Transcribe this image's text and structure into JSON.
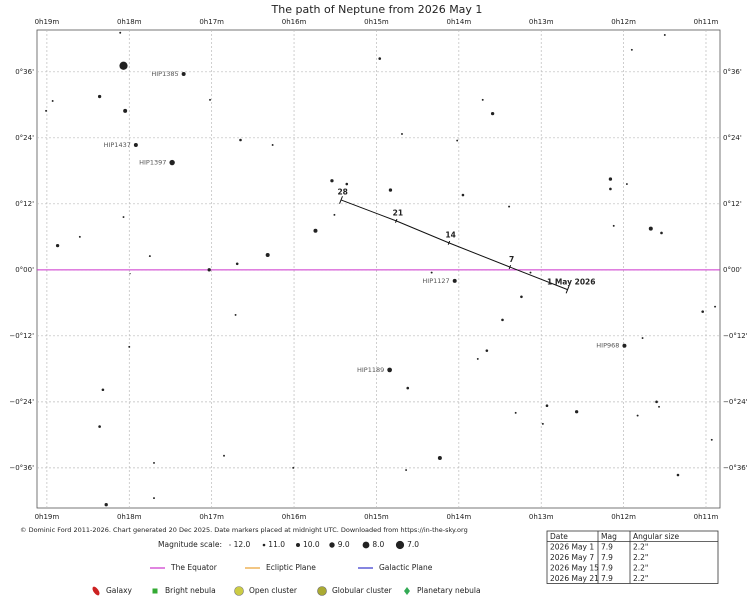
{
  "chart_data": {
    "type": "starchart",
    "title": "The path of Neptune from 2026 May 1",
    "credit": "© Dominic Ford 2011-2026. Chart generated 20 Dec 2025. Date markers placed at midnight UTC. Downloaded from https://in-the-sky.org",
    "xlim": [
      19.12,
      10.83
    ],
    "ylim": [
      -43.3,
      43.6
    ],
    "xticks": [
      {
        "value": 19,
        "label": "0h19m"
      },
      {
        "value": 18,
        "label": "0h18m"
      },
      {
        "value": 17,
        "label": "0h17m"
      },
      {
        "value": 16,
        "label": "0h16m"
      },
      {
        "value": 15,
        "label": "0h15m"
      },
      {
        "value": 14,
        "label": "0h14m"
      },
      {
        "value": 13,
        "label": "0h13m"
      },
      {
        "value": 12,
        "label": "0h12m"
      },
      {
        "value": 11,
        "label": "0h11m"
      }
    ],
    "yticks": [
      {
        "value": 36,
        "label": "0°36'"
      },
      {
        "value": 24,
        "label": "0°24'"
      },
      {
        "value": 12,
        "label": "0°12'"
      },
      {
        "value": 0,
        "label": "0°00'"
      },
      {
        "value": -12,
        "label": "−0°12'"
      },
      {
        "value": -24,
        "label": "−0°24'"
      },
      {
        "value": -36,
        "label": "−0°36'"
      }
    ],
    "grid": true,
    "equator_color": "#cc33cc",
    "stars": [
      {
        "ra": 18.11,
        "dec": 43.1,
        "mag": 11.5
      },
      {
        "ra": 18.07,
        "dec": 37.1,
        "mag": 7.0
      },
      {
        "ra": 17.34,
        "dec": 35.6,
        "mag": 10.0,
        "label": "HIP1385"
      },
      {
        "ra": 14.96,
        "dec": 38.4,
        "mag": 11.0
      },
      {
        "ra": 11.9,
        "dec": 40.0,
        "mag": 11.5
      },
      {
        "ra": 11.5,
        "dec": 42.7,
        "mag": 11.5
      },
      {
        "ra": 19.01,
        "dec": 28.9,
        "mag": 11.5
      },
      {
        "ra": 18.93,
        "dec": 30.7,
        "mag": 11.5
      },
      {
        "ra": 18.36,
        "dec": 31.5,
        "mag": 10.5
      },
      {
        "ra": 18.05,
        "dec": 28.9,
        "mag": 10.0
      },
      {
        "ra": 17.02,
        "dec": 30.9,
        "mag": 11.5
      },
      {
        "ra": 13.71,
        "dec": 30.9,
        "mag": 11.5
      },
      {
        "ra": 13.59,
        "dec": 28.4,
        "mag": 10.5
      },
      {
        "ra": 17.92,
        "dec": 22.7,
        "mag": 10.0,
        "label": "HIP1437"
      },
      {
        "ra": 17.48,
        "dec": 19.5,
        "mag": 9.0,
        "label": "HIP1397"
      },
      {
        "ra": 16.65,
        "dec": 23.6,
        "mag": 11.0
      },
      {
        "ra": 16.26,
        "dec": 22.7,
        "mag": 11.5
      },
      {
        "ra": 14.69,
        "dec": 24.7,
        "mag": 11.5
      },
      {
        "ra": 14.02,
        "dec": 23.5,
        "mag": 11.5
      },
      {
        "ra": 15.54,
        "dec": 16.2,
        "mag": 10.5
      },
      {
        "ra": 15.36,
        "dec": 15.6,
        "mag": 11.0
      },
      {
        "ra": 14.83,
        "dec": 14.5,
        "mag": 10.5
      },
      {
        "ra": 13.95,
        "dec": 13.6,
        "mag": 11.0
      },
      {
        "ra": 13.39,
        "dec": 11.5,
        "mag": 11.5
      },
      {
        "ra": 12.16,
        "dec": 16.5,
        "mag": 10.5
      },
      {
        "ra": 12.16,
        "dec": 14.7,
        "mag": 11.0
      },
      {
        "ra": 11.96,
        "dec": 15.6,
        "mag": 11.5
      },
      {
        "ra": 18.07,
        "dec": 9.6,
        "mag": 11.5
      },
      {
        "ra": 18.87,
        "dec": 4.4,
        "mag": 10.5
      },
      {
        "ra": 18.6,
        "dec": 6.0,
        "mag": 11.5
      },
      {
        "ra": 17.75,
        "dec": 2.5,
        "mag": 11.5
      },
      {
        "ra": 16.69,
        "dec": 1.1,
        "mag": 11.0
      },
      {
        "ra": 16.32,
        "dec": 2.7,
        "mag": 10.0
      },
      {
        "ra": 15.74,
        "dec": 7.1,
        "mag": 10.0
      },
      {
        "ra": 15.51,
        "dec": 10.0,
        "mag": 11.5
      },
      {
        "ra": 12.12,
        "dec": 8.0,
        "mag": 11.5
      },
      {
        "ra": 11.67,
        "dec": 7.5,
        "mag": 10.0
      },
      {
        "ra": 11.54,
        "dec": 6.7,
        "mag": 11.0
      },
      {
        "ra": 17.03,
        "dec": 0,
        "mag": 10.5
      },
      {
        "ra": 17.99,
        "dec": -0.7,
        "mag": 12.0
      },
      {
        "ra": 14.33,
        "dec": -0.5,
        "mag": 11.5
      },
      {
        "ra": 14.05,
        "dec": -2.0,
        "mag": 10.0,
        "label": "HIP1127"
      },
      {
        "ra": 13.13,
        "dec": -0.5,
        "mag": 11.5
      },
      {
        "ra": 13.24,
        "dec": -4.9,
        "mag": 11.0
      },
      {
        "ra": 11.04,
        "dec": -7.6,
        "mag": 11.0
      },
      {
        "ra": 10.89,
        "dec": -6.7,
        "mag": 11.5
      },
      {
        "ra": 16.71,
        "dec": -8.2,
        "mag": 11.5
      },
      {
        "ra": 13.47,
        "dec": -9.1,
        "mag": 11.0
      },
      {
        "ra": 18.0,
        "dec": -14.0,
        "mag": 11.5
      },
      {
        "ra": 11.99,
        "dec": -13.8,
        "mag": 10.0,
        "label": "HIP968"
      },
      {
        "ra": 11.77,
        "dec": -12.4,
        "mag": 11.5
      },
      {
        "ra": 13.66,
        "dec": -14.7,
        "mag": 11.0
      },
      {
        "ra": 13.77,
        "dec": -16.2,
        "mag": 11.5
      },
      {
        "ra": 14.84,
        "dec": -18.2,
        "mag": 9.5,
        "label": "HIP1189"
      },
      {
        "ra": 18.32,
        "dec": -21.8,
        "mag": 11.0
      },
      {
        "ra": 14.62,
        "dec": -21.5,
        "mag": 11.0
      },
      {
        "ra": 18.36,
        "dec": -28.5,
        "mag": 11.0
      },
      {
        "ra": 12.93,
        "dec": -24.7,
        "mag": 11.0
      },
      {
        "ra": 12.57,
        "dec": -25.8,
        "mag": 10.5
      },
      {
        "ra": 13.31,
        "dec": -26.0,
        "mag": 11.5
      },
      {
        "ra": 12.98,
        "dec": -28.0,
        "mag": 11.5
      },
      {
        "ra": 11.83,
        "dec": -26.5,
        "mag": 11.5
      },
      {
        "ra": 11.6,
        "dec": -24.0,
        "mag": 11.0
      },
      {
        "ra": 11.57,
        "dec": -24.9,
        "mag": 11.5
      },
      {
        "ra": 10.93,
        "dec": -30.9,
        "mag": 11.5
      },
      {
        "ra": 16.85,
        "dec": -33.8,
        "mag": 11.5
      },
      {
        "ra": 17.7,
        "dec": -35.1,
        "mag": 11.5
      },
      {
        "ra": 14.23,
        "dec": -34.2,
        "mag": 10.0
      },
      {
        "ra": 16.01,
        "dec": -36.0,
        "mag": 11.5
      },
      {
        "ra": 14.64,
        "dec": -36.4,
        "mag": 11.5
      },
      {
        "ra": 11.34,
        "dec": -37.3,
        "mag": 11.0
      },
      {
        "ra": 18.28,
        "dec": -42.7,
        "mag": 10.5
      },
      {
        "ra": 17.7,
        "dec": -41.5,
        "mag": 11.5
      }
    ],
    "path": {
      "ra": [
        12.68,
        13.38,
        14.12,
        14.76,
        15.43
      ],
      "dec": [
        -3.6,
        0.5,
        4.9,
        8.9,
        12.7
      ],
      "labels": [
        "1 May 2026",
        "7",
        "14",
        "21",
        "28"
      ]
    },
    "magnitude_scale": {
      "title": "Magnitude scale:",
      "values": [
        {
          "value": 12,
          "label": "12.0"
        },
        {
          "value": 11,
          "label": "11.0"
        },
        {
          "value": 10,
          "label": "10.0"
        },
        {
          "value": 9,
          "label": "9.0"
        },
        {
          "value": 8,
          "label": "8.0"
        },
        {
          "value": 7,
          "label": "7.0"
        }
      ]
    },
    "lines_legend": [
      {
        "name": "The Equator",
        "color": "#cc33cc"
      },
      {
        "name": "Ecliptic Plane",
        "color": "#e8a030"
      },
      {
        "name": "Galactic Plane",
        "color": "#3333cc"
      }
    ],
    "objects_legend": [
      {
        "name": "Galaxy",
        "color": "#cc2222"
      },
      {
        "name": "Bright nebula",
        "color": "#33aa33"
      },
      {
        "name": "Open cluster",
        "color": "#cccc44"
      },
      {
        "name": "Globular cluster",
        "color": "#aaaa33"
      },
      {
        "name": "Planetary nebula",
        "color": "#33aa55"
      }
    ],
    "table": {
      "header": [
        "Date",
        "Mag",
        "Angular size"
      ],
      "rows": [
        [
          "2026 May 1",
          "7.9",
          "2.2\""
        ],
        [
          "2026 May 7",
          "7.9",
          "2.2\""
        ],
        [
          "2026 May 15",
          "7.9",
          "2.2\""
        ],
        [
          "2026 May 21",
          "7.9",
          "2.2\""
        ]
      ]
    }
  }
}
